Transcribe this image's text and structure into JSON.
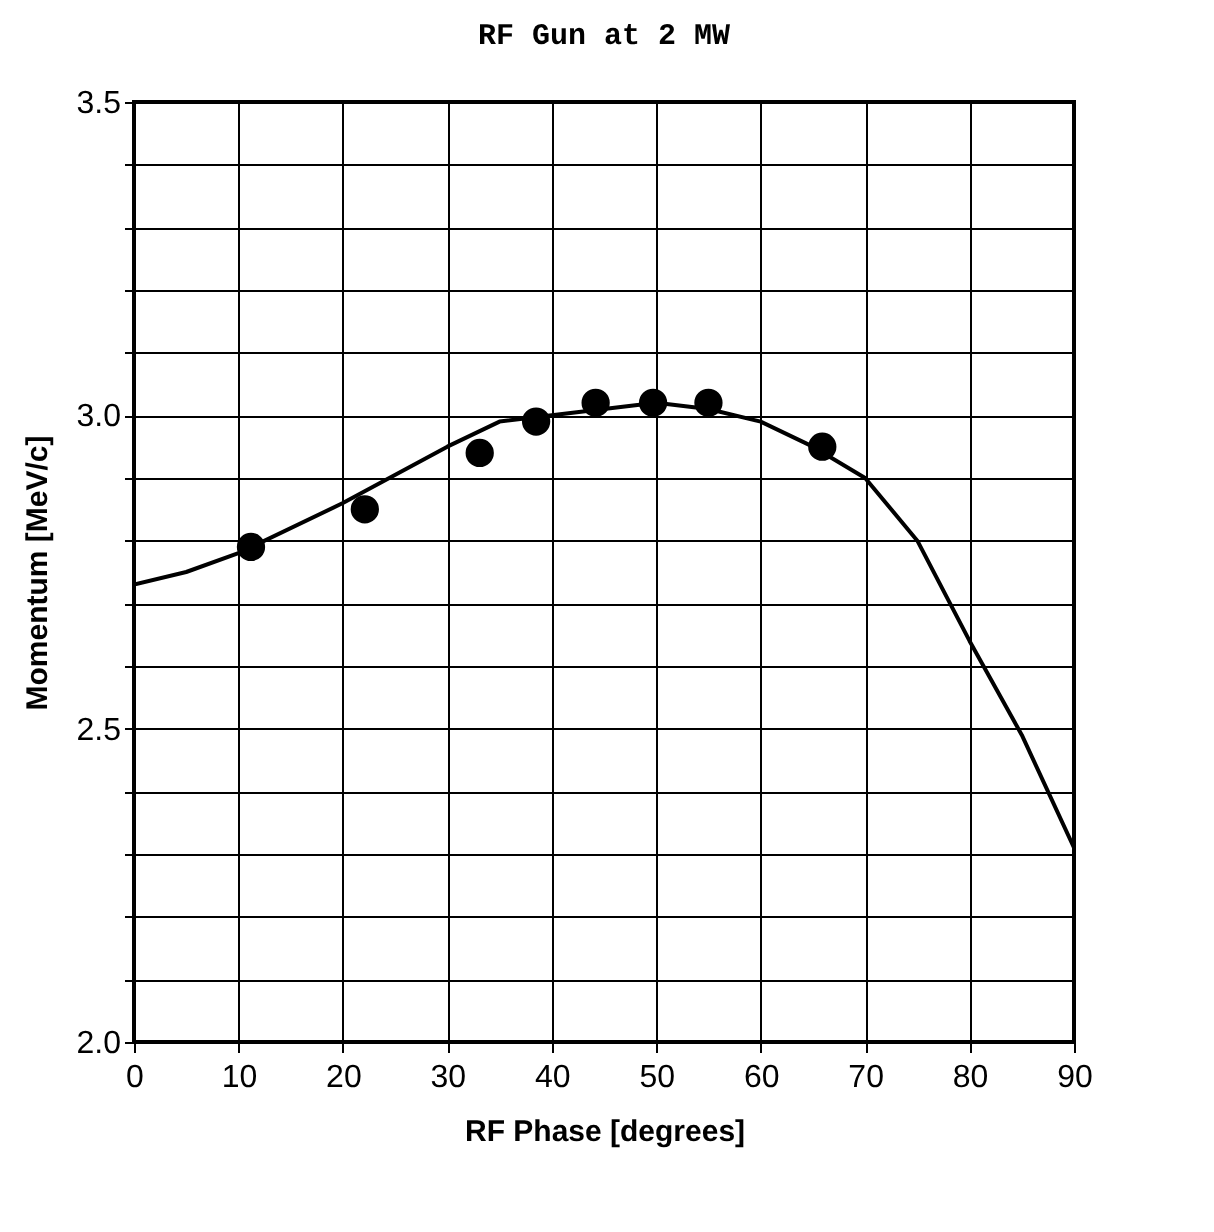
{
  "chart_data": {
    "type": "scatter",
    "title": "RF Gun at 2 MW",
    "xlabel": "RF Phase [degrees]",
    "ylabel": "Momentum [MeV/c]",
    "x": [
      11.2,
      22.1,
      33.1,
      38.5,
      44.2,
      49.7,
      55.0,
      65.9
    ],
    "series": [
      {
        "color": "#000000",
        "marker": "circle",
        "values": [
          2.79,
          2.85,
          2.94,
          2.99,
          3.02,
          3.02,
          3.02,
          2.95
        ]
      },
      {
        "type": "line",
        "color": "#000000",
        "line_style": "solid",
        "x": [
          0,
          5,
          10,
          20,
          30,
          35,
          40,
          45,
          50,
          55,
          60,
          65,
          70,
          75,
          80,
          85,
          90
        ],
        "values": [
          2.73,
          2.75,
          2.78,
          2.86,
          2.95,
          2.99,
          3.0,
          3.01,
          3.02,
          3.01,
          2.99,
          2.95,
          2.9,
          2.8,
          2.64,
          2.49,
          2.31
        ]
      }
    ],
    "xlim": [
      0,
      90
    ],
    "xticks": [
      0,
      10,
      20,
      30,
      40,
      50,
      60,
      70,
      80,
      90
    ],
    "ylim": [
      2.0,
      3.5
    ],
    "yticks": [
      {
        "value": 2.0,
        "label": "2.0"
      },
      {
        "value": 2.1,
        "label": null
      },
      {
        "value": 2.2,
        "label": null
      },
      {
        "value": 2.3,
        "label": null
      },
      {
        "value": 2.4,
        "label": null
      },
      {
        "value": 2.5,
        "label": "2.5"
      },
      {
        "value": 2.6,
        "label": null
      },
      {
        "value": 2.7,
        "label": null
      },
      {
        "value": 2.8,
        "label": null
      },
      {
        "value": 2.9,
        "label": null
      },
      {
        "value": 3.0,
        "label": "3.0"
      },
      {
        "value": 3.1,
        "label": null
      },
      {
        "value": 3.2,
        "label": null
      },
      {
        "value": 3.3,
        "label": null
      },
      {
        "value": 3.4,
        "label": null
      },
      {
        "value": 3.5,
        "label": "3.5"
      }
    ],
    "grid": true
  }
}
